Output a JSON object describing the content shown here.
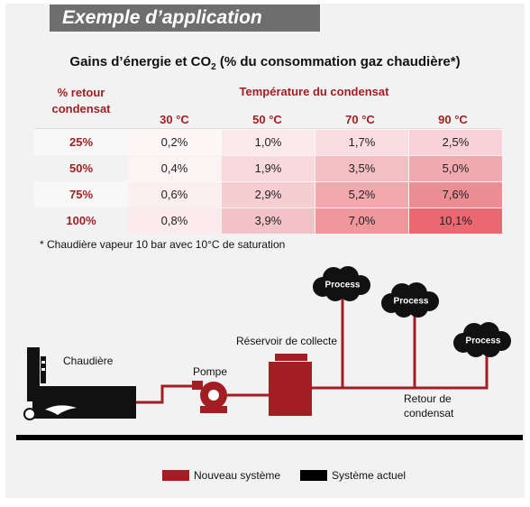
{
  "header": {
    "title": "Exemple d’application"
  },
  "table": {
    "title": {
      "before": "Gains d’énergie et CO",
      "sub": "2",
      "after": " (% du consommation gaz chaudière*)"
    },
    "row_header": [
      "% retour",
      "condensat"
    ],
    "column_group": "Température du condensat",
    "columns": [
      "30 °C",
      "50 °C",
      "70 °C",
      "90 °C"
    ],
    "rows": [
      {
        "label": "25%",
        "cells": [
          "0,2%",
          "1,0%",
          "1,7%",
          "2,5%"
        ]
      },
      {
        "label": "50%",
        "cells": [
          "0,4%",
          "1,9%",
          "3,5%",
          "5,0%"
        ]
      },
      {
        "label": "75%",
        "cells": [
          "0,6%",
          "2,9%",
          "5,2%",
          "7,6%"
        ]
      },
      {
        "label": "100%",
        "cells": [
          "0,8%",
          "3,9%",
          "7,0%",
          "10,1%"
        ]
      }
    ],
    "footnote": "* Chaudière vapeur 10 bar avec 10°C de saturation"
  },
  "diagram": {
    "boiler": "Chaudière",
    "pump": "Pompe",
    "reservoir": "Réservoir de collecte",
    "process": [
      "Process",
      "Process",
      "Process"
    ],
    "return": [
      "Retour de",
      "condensat"
    ]
  },
  "legend": [
    "Nouveau système",
    "Système actuel"
  ]
}
